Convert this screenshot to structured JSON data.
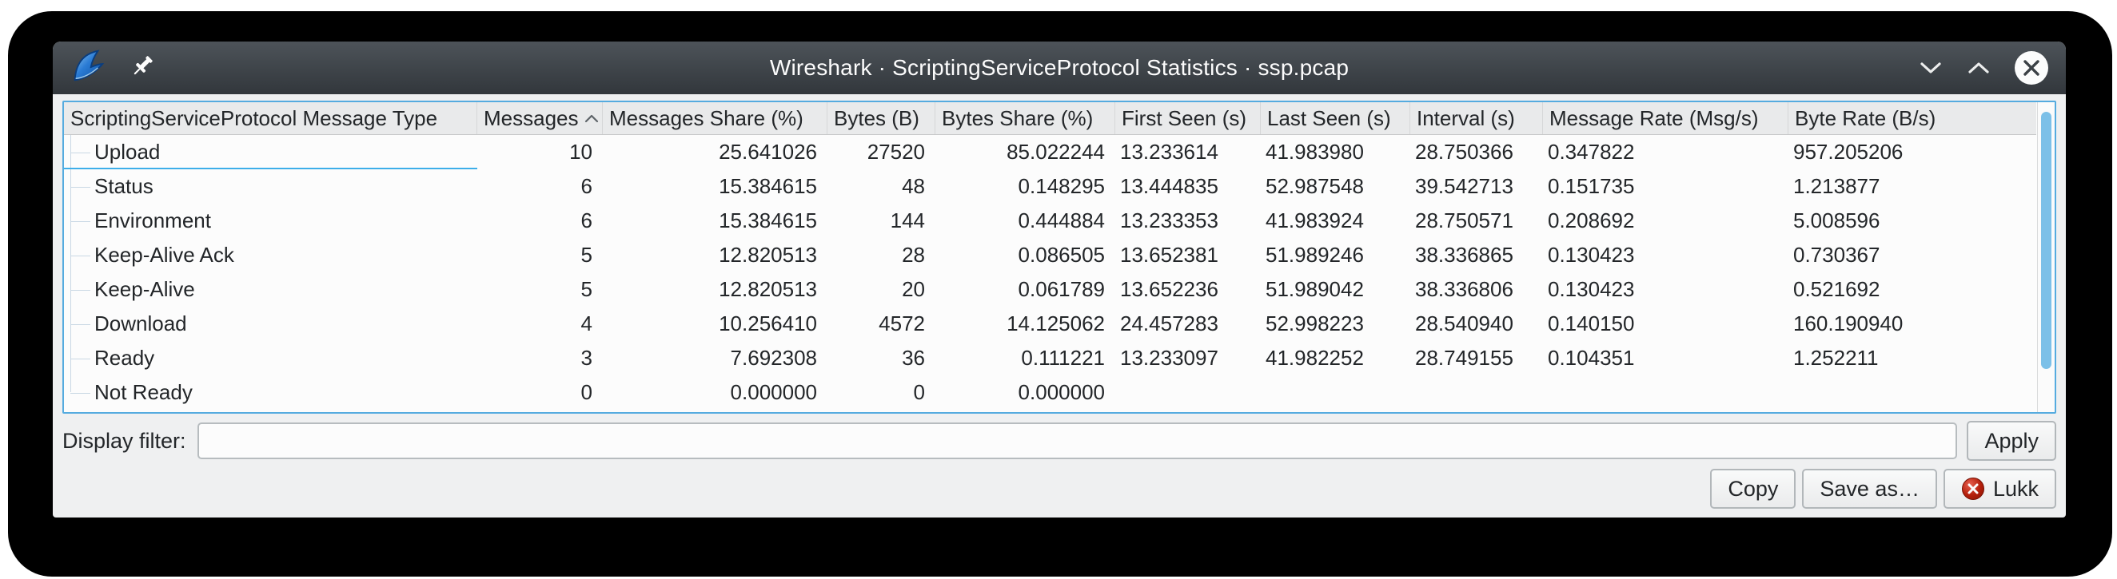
{
  "window": {
    "title": "Wireshark · ScriptingServiceProtocol Statistics · ssp.pcap"
  },
  "colors": {
    "titlebar_top": "#4d5359",
    "titlebar_bottom": "#32373c",
    "dialog_background": "#eff0f1",
    "table_border": "#55abdf",
    "selection_accent": "#3daee9",
    "scrollbar_thumb": "#7cc0e8",
    "close_icon_red": "#b5200c"
  },
  "table": {
    "columns": [
      {
        "label": "ScriptingServiceProtocol Message Type",
        "align": "left",
        "sorted": false
      },
      {
        "label": "Messages",
        "align": "right",
        "sorted": true
      },
      {
        "label": "Messages Share (%)",
        "align": "right",
        "sorted": false
      },
      {
        "label": "Bytes (B)",
        "align": "right",
        "sorted": false
      },
      {
        "label": "Bytes Share (%)",
        "align": "right",
        "sorted": false
      },
      {
        "label": "First Seen (s)",
        "align": "left",
        "sorted": false
      },
      {
        "label": "Last Seen (s)",
        "align": "left",
        "sorted": false
      },
      {
        "label": "Interval (s)",
        "align": "left",
        "sorted": false
      },
      {
        "label": "Message Rate (Msg/s)",
        "align": "left",
        "sorted": false
      },
      {
        "label": "Byte Rate (B/s)",
        "align": "left",
        "sorted": false
      }
    ],
    "rows": [
      {
        "name": "Upload",
        "current": true,
        "values": [
          "10",
          "25.641026",
          "27520",
          "85.022244",
          "13.233614",
          "41.983980",
          "28.750366",
          "0.347822",
          "957.205206"
        ]
      },
      {
        "name": "Status",
        "current": false,
        "values": [
          "6",
          "15.384615",
          "48",
          "0.148295",
          "13.444835",
          "52.987548",
          "39.542713",
          "0.151735",
          "1.213877"
        ]
      },
      {
        "name": "Environment",
        "current": false,
        "values": [
          "6",
          "15.384615",
          "144",
          "0.444884",
          "13.233353",
          "41.983924",
          "28.750571",
          "0.208692",
          "5.008596"
        ]
      },
      {
        "name": "Keep-Alive Ack",
        "current": false,
        "values": [
          "5",
          "12.820513",
          "28",
          "0.086505",
          "13.652381",
          "51.989246",
          "38.336865",
          "0.130423",
          "0.730367"
        ]
      },
      {
        "name": "Keep-Alive",
        "current": false,
        "values": [
          "5",
          "12.820513",
          "20",
          "0.061789",
          "13.652236",
          "51.989042",
          "38.336806",
          "0.130423",
          "0.521692"
        ]
      },
      {
        "name": "Download",
        "current": false,
        "values": [
          "4",
          "10.256410",
          "4572",
          "14.125062",
          "24.457283",
          "52.998223",
          "28.540940",
          "0.140150",
          "160.190940"
        ]
      },
      {
        "name": "Ready",
        "current": false,
        "values": [
          "3",
          "7.692308",
          "36",
          "0.111221",
          "13.233097",
          "41.982252",
          "28.749155",
          "0.104351",
          "1.252211"
        ]
      },
      {
        "name": "Not Ready",
        "current": false,
        "values": [
          "0",
          "0.000000",
          "0",
          "0.000000",
          "",
          "",
          "",
          "",
          ""
        ]
      }
    ]
  },
  "filter": {
    "label": "Display filter:",
    "value": "",
    "apply_label": "Apply"
  },
  "actions": {
    "copy": "Copy",
    "save_as": "Save as…",
    "close": "Lukk"
  }
}
